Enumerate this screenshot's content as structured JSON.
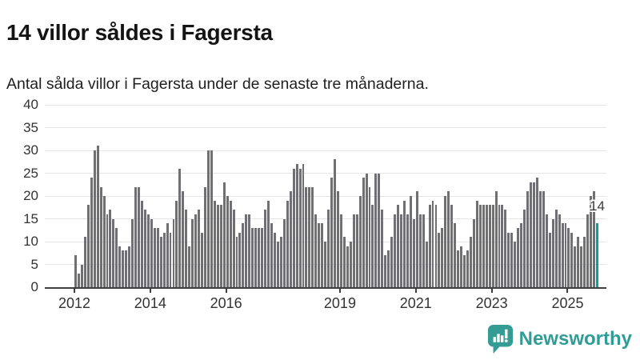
{
  "chart_data": {
    "type": "bar",
    "title": "14 villor såldes i Fagersta",
    "subtitle": "Antal sålda villor i Fagersta under de senaste tre månaderna.",
    "x_start_year": 2012,
    "x_frequency": "monthly",
    "values": [
      7,
      3,
      5,
      11,
      18,
      24,
      30,
      31,
      22,
      20,
      16,
      17,
      15,
      13,
      9,
      8,
      8,
      9,
      15,
      22,
      22,
      19,
      17,
      16,
      15,
      13,
      13,
      11,
      12,
      14,
      12,
      15,
      19,
      26,
      21,
      17,
      9,
      15,
      16,
      17,
      12,
      22,
      30,
      30,
      19,
      18,
      18,
      23,
      20,
      19,
      17,
      11,
      12,
      14,
      16,
      16,
      13,
      13,
      13,
      13,
      17,
      19,
      14,
      12,
      10,
      11,
      15,
      19,
      21,
      26,
      27,
      26,
      27,
      22,
      22,
      22,
      16,
      14,
      14,
      10,
      17,
      24,
      28,
      21,
      16,
      11,
      9,
      10,
      16,
      16,
      20,
      24,
      25,
      22,
      18,
      25,
      25,
      17,
      7,
      8,
      11,
      16,
      18,
      16,
      19,
      16,
      20,
      15,
      21,
      16,
      16,
      10,
      18,
      19,
      18,
      12,
      13,
      20,
      21,
      18,
      14,
      8,
      9,
      7,
      8,
      11,
      15,
      19,
      18,
      18,
      18,
      18,
      18,
      21,
      18,
      18,
      17,
      12,
      12,
      10,
      13,
      14,
      17,
      21,
      23,
      23,
      24,
      21,
      21,
      16,
      12,
      15,
      17,
      16,
      14,
      14,
      13,
      12,
      9,
      11,
      9,
      11,
      16,
      20,
      21,
      14
    ],
    "highlight_last": true,
    "highlight_label": "14",
    "highlight_color": "#00a49c",
    "bar_color": "#6f6f74",
    "yticks": [
      0,
      5,
      10,
      15,
      20,
      25,
      30,
      35,
      40
    ],
    "ylim": [
      0,
      40
    ],
    "xticks": [
      2012,
      2014,
      2016,
      2019,
      2021,
      2023,
      2025
    ],
    "grid": "horizontal",
    "legend": "none"
  },
  "footer": {
    "brand": "Newsworthy",
    "logo_icon": "newsworthy-speech-bubble-bar-chart"
  }
}
